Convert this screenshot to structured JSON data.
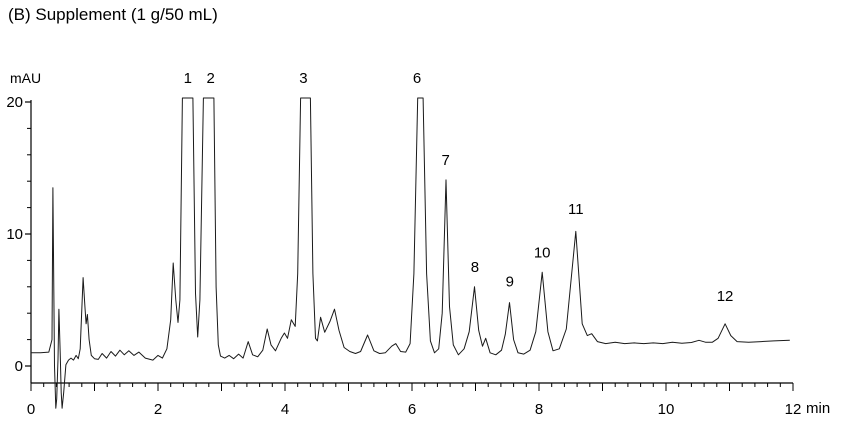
{
  "chart_data": {
    "type": "line",
    "title": "(B) Supplement (1 g/50 mL)",
    "xlabel": "min",
    "ylabel": "mAU",
    "xlim": [
      0,
      12
    ],
    "ylim": [
      -3.5,
      21.5
    ],
    "x_tick_labels": [
      0,
      2,
      4,
      6,
      8,
      10,
      12
    ],
    "x_major_tick_step": 1,
    "x_minor_tick_step": 0.2,
    "y_tick_labels": [
      0,
      10,
      20
    ],
    "y_minor_tick_step": 2,
    "grid": false,
    "trace_color": "#1a1a1a",
    "detector_clip_level_mAU": 20.3,
    "peaks": [
      {
        "label": "1",
        "retention_time_min": 2.47,
        "apex_mAU": 20.3,
        "clipped": true,
        "label_t": 2.47,
        "label_mAU": 21.8
      },
      {
        "label": "2",
        "retention_time_min": 2.8,
        "apex_mAU": 20.3,
        "clipped": true,
        "label_t": 2.83,
        "label_mAU": 21.8
      },
      {
        "label": "3",
        "retention_time_min": 4.32,
        "apex_mAU": 20.3,
        "clipped": true,
        "label_t": 4.29,
        "label_mAU": 21.8
      },
      {
        "label": "6",
        "retention_time_min": 6.13,
        "apex_mAU": 20.3,
        "clipped": true,
        "label_t": 6.08,
        "label_mAU": 21.8
      },
      {
        "label": "7",
        "retention_time_min": 6.54,
        "apex_mAU": 14.1,
        "clipped": false,
        "label_t": 6.53,
        "label_mAU": 15.6
      },
      {
        "label": "8",
        "retention_time_min": 6.99,
        "apex_mAU": 6.0,
        "clipped": false,
        "label_t": 6.99,
        "label_mAU": 7.5
      },
      {
        "label": "9",
        "retention_time_min": 7.54,
        "apex_mAU": 4.8,
        "clipped": false,
        "label_t": 7.54,
        "label_mAU": 6.4
      },
      {
        "label": "10",
        "retention_time_min": 8.05,
        "apex_mAU": 7.1,
        "clipped": false,
        "label_t": 8.05,
        "label_mAU": 8.6
      },
      {
        "label": "11",
        "retention_time_min": 8.58,
        "apex_mAU": 10.2,
        "clipped": false,
        "label_t": 8.58,
        "label_mAU": 11.9
      },
      {
        "label": "12",
        "retention_time_min": 10.93,
        "apex_mAU": 3.2,
        "clipped": false,
        "label_t": 10.93,
        "label_mAU": 5.3
      }
    ],
    "trace": [
      [
        0.0,
        1.0
      ],
      [
        0.15,
        1.0
      ],
      [
        0.28,
        1.05
      ],
      [
        0.33,
        2.0
      ],
      [
        0.345,
        13.5
      ],
      [
        0.37,
        0.0
      ],
      [
        0.39,
        -3.2
      ],
      [
        0.405,
        -2.5
      ],
      [
        0.425,
        0.5
      ],
      [
        0.44,
        4.3
      ],
      [
        0.46,
        1.0
      ],
      [
        0.475,
        -2.0
      ],
      [
        0.49,
        -3.2
      ],
      [
        0.515,
        -2.0
      ],
      [
        0.55,
        0.1
      ],
      [
        0.59,
        0.45
      ],
      [
        0.63,
        0.6
      ],
      [
        0.67,
        0.45
      ],
      [
        0.71,
        0.8
      ],
      [
        0.745,
        0.55
      ],
      [
        0.775,
        1.3
      ],
      [
        0.82,
        6.7
      ],
      [
        0.85,
        4.4
      ],
      [
        0.868,
        3.2
      ],
      [
        0.888,
        3.9
      ],
      [
        0.915,
        2.0
      ],
      [
        0.95,
        0.8
      ],
      [
        1.0,
        0.55
      ],
      [
        1.06,
        0.5
      ],
      [
        1.12,
        0.95
      ],
      [
        1.19,
        0.6
      ],
      [
        1.26,
        1.1
      ],
      [
        1.33,
        0.75
      ],
      [
        1.4,
        1.2
      ],
      [
        1.47,
        0.85
      ],
      [
        1.54,
        1.15
      ],
      [
        1.62,
        0.8
      ],
      [
        1.7,
        1.05
      ],
      [
        1.8,
        0.6
      ],
      [
        1.92,
        0.45
      ],
      [
        2.0,
        0.8
      ],
      [
        2.07,
        0.6
      ],
      [
        2.14,
        1.3
      ],
      [
        2.2,
        3.5
      ],
      [
        2.24,
        7.8
      ],
      [
        2.28,
        5.0
      ],
      [
        2.315,
        3.3
      ],
      [
        2.345,
        5.0
      ],
      [
        2.385,
        20.3
      ],
      [
        2.55,
        20.3
      ],
      [
        2.59,
        5.5
      ],
      [
        2.625,
        2.2
      ],
      [
        2.66,
        5.0
      ],
      [
        2.715,
        20.3
      ],
      [
        2.88,
        20.3
      ],
      [
        2.915,
        6.0
      ],
      [
        2.95,
        1.6
      ],
      [
        2.985,
        0.75
      ],
      [
        3.05,
        0.6
      ],
      [
        3.12,
        0.8
      ],
      [
        3.19,
        0.55
      ],
      [
        3.27,
        0.9
      ],
      [
        3.34,
        0.6
      ],
      [
        3.42,
        1.85
      ],
      [
        3.49,
        0.85
      ],
      [
        3.57,
        0.7
      ],
      [
        3.65,
        1.2
      ],
      [
        3.72,
        2.8
      ],
      [
        3.78,
        1.6
      ],
      [
        3.85,
        1.15
      ],
      [
        3.94,
        2.1
      ],
      [
        3.99,
        2.5
      ],
      [
        4.04,
        2.1
      ],
      [
        4.1,
        3.5
      ],
      [
        4.16,
        3.0
      ],
      [
        4.2,
        7.0
      ],
      [
        4.245,
        20.3
      ],
      [
        4.4,
        20.3
      ],
      [
        4.44,
        7.0
      ],
      [
        4.48,
        2.1
      ],
      [
        4.51,
        1.9
      ],
      [
        4.56,
        3.7
      ],
      [
        4.625,
        2.55
      ],
      [
        4.71,
        3.4
      ],
      [
        4.78,
        4.3
      ],
      [
        4.85,
        2.7
      ],
      [
        4.93,
        1.4
      ],
      [
        5.02,
        1.1
      ],
      [
        5.11,
        0.95
      ],
      [
        5.19,
        1.1
      ],
      [
        5.3,
        2.35
      ],
      [
        5.4,
        1.15
      ],
      [
        5.49,
        0.95
      ],
      [
        5.58,
        1.0
      ],
      [
        5.68,
        1.5
      ],
      [
        5.745,
        1.7
      ],
      [
        5.82,
        1.1
      ],
      [
        5.9,
        1.05
      ],
      [
        5.97,
        1.7
      ],
      [
        6.03,
        7.0
      ],
      [
        6.09,
        20.3
      ],
      [
        6.175,
        20.3
      ],
      [
        6.23,
        7.0
      ],
      [
        6.29,
        1.9
      ],
      [
        6.355,
        1.0
      ],
      [
        6.42,
        1.3
      ],
      [
        6.475,
        4.0
      ],
      [
        6.535,
        14.1
      ],
      [
        6.59,
        4.5
      ],
      [
        6.65,
        1.6
      ],
      [
        6.73,
        0.85
      ],
      [
        6.82,
        1.3
      ],
      [
        6.9,
        2.6
      ],
      [
        6.985,
        6.0
      ],
      [
        7.05,
        2.7
      ],
      [
        7.11,
        1.5
      ],
      [
        7.16,
        2.1
      ],
      [
        7.23,
        1.0
      ],
      [
        7.32,
        0.85
      ],
      [
        7.41,
        1.2
      ],
      [
        7.47,
        2.4
      ],
      [
        7.535,
        4.8
      ],
      [
        7.6,
        2.0
      ],
      [
        7.67,
        1.0
      ],
      [
        7.76,
        0.9
      ],
      [
        7.86,
        1.2
      ],
      [
        7.95,
        2.6
      ],
      [
        8.05,
        7.1
      ],
      [
        8.14,
        2.6
      ],
      [
        8.22,
        1.15
      ],
      [
        8.32,
        1.3
      ],
      [
        8.43,
        2.8
      ],
      [
        8.58,
        10.2
      ],
      [
        8.68,
        3.2
      ],
      [
        8.76,
        2.3
      ],
      [
        8.83,
        2.45
      ],
      [
        8.92,
        1.85
      ],
      [
        9.05,
        1.7
      ],
      [
        9.2,
        1.8
      ],
      [
        9.35,
        1.7
      ],
      [
        9.5,
        1.75
      ],
      [
        9.65,
        1.7
      ],
      [
        9.8,
        1.75
      ],
      [
        9.95,
        1.7
      ],
      [
        10.1,
        1.8
      ],
      [
        10.25,
        1.72
      ],
      [
        10.4,
        1.78
      ],
      [
        10.52,
        1.95
      ],
      [
        10.62,
        1.8
      ],
      [
        10.73,
        1.8
      ],
      [
        10.82,
        2.1
      ],
      [
        10.93,
        3.2
      ],
      [
        11.02,
        2.3
      ],
      [
        11.12,
        1.85
      ],
      [
        11.3,
        1.8
      ],
      [
        11.5,
        1.85
      ],
      [
        11.7,
        1.9
      ],
      [
        11.95,
        1.95
      ]
    ]
  }
}
